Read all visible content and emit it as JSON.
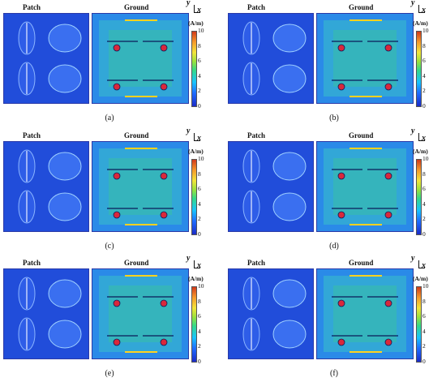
{
  "headers": {
    "patch": "Patch",
    "ground": "Ground"
  },
  "axes": {
    "y": "y",
    "x": "x"
  },
  "colorbar": {
    "unit": "(A/m)",
    "ticks": [
      "10",
      "8",
      "6",
      "4",
      "2",
      "0"
    ]
  },
  "panels": [
    {
      "label": "(a)"
    },
    {
      "label": "(b)"
    },
    {
      "label": "(c)"
    },
    {
      "label": "(d)"
    },
    {
      "label": "(e)"
    },
    {
      "label": "(f)"
    }
  ]
}
